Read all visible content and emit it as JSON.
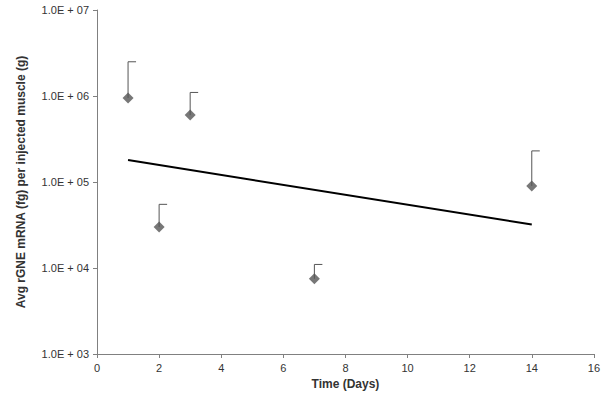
{
  "chart_data": {
    "type": "scatter",
    "xlabel": "Time (Days)",
    "ylabel": "Avg rGNE mRNA (fg) per injected muscle (g)",
    "x": [
      1,
      2,
      3,
      7,
      14
    ],
    "values": [
      950000,
      30000,
      600000,
      7500,
      90000
    ],
    "errors_upper": [
      1550000,
      25000,
      500000,
      3500,
      140000
    ],
    "color": "#555555",
    "marker": "diamond",
    "trend": {
      "x": [
        1,
        14
      ],
      "values": [
        180000,
        32000
      ],
      "color": "#000000",
      "line_style": "solid"
    },
    "log": "y",
    "grid": false,
    "xlim": [
      0,
      16
    ],
    "xticks": [
      0,
      2,
      4,
      6,
      8,
      10,
      12,
      14,
      16
    ],
    "ylim": [
      1000,
      10000000
    ],
    "yticks": [
      {
        "value": 1000,
        "label": "1.0E + 03"
      },
      {
        "value": 10000,
        "label": "1.0E + 04"
      },
      {
        "value": 100000,
        "label": "1.0E + 05"
      },
      {
        "value": 1000000,
        "label": "1.0E + 06"
      },
      {
        "value": 10000000,
        "label": "1.0E + 07"
      }
    ]
  }
}
